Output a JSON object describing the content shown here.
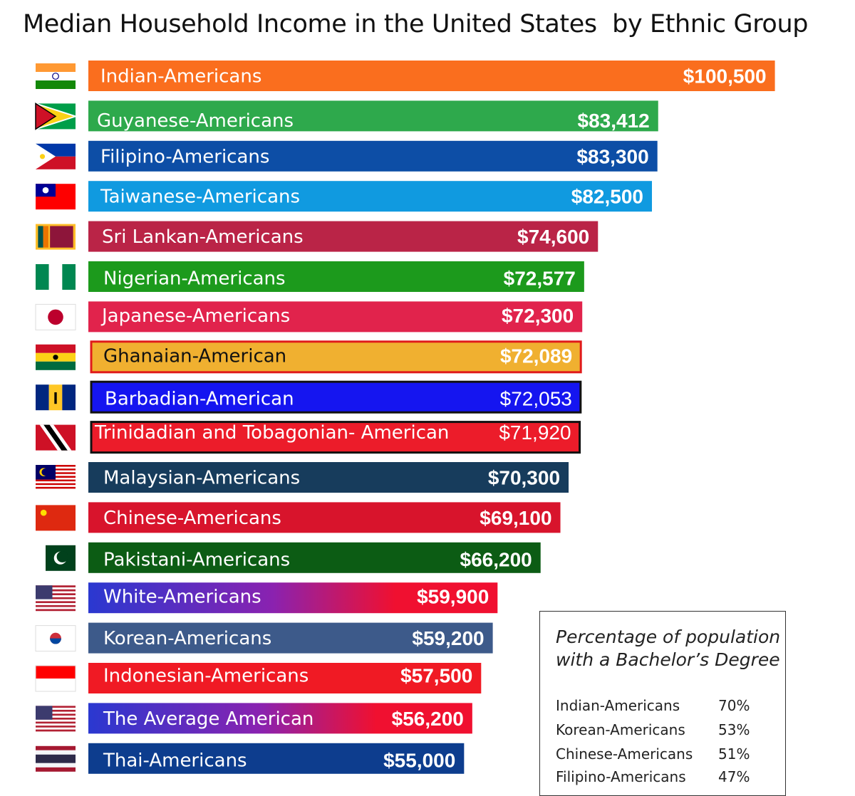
{
  "chart_data": {
    "type": "bar",
    "orientation": "horizontal",
    "title": "Median Household Income in the United States  by Ethnic Group",
    "bars": [
      {
        "label": "Indian-Americans",
        "value": 100500,
        "value_label": "$100,500",
        "color": "#fa6e1e",
        "flag": "india-flag-icon"
      },
      {
        "label": "Guyanese-Americans",
        "value": 83412,
        "value_label": "$83,412",
        "color": "#2ea94c",
        "flag": "guyana-flag-icon"
      },
      {
        "label": "Filipino-Americans",
        "value": 83300,
        "value_label": "$83,300",
        "color": "#0d4ea6",
        "flag": "philippines-flag-icon"
      },
      {
        "label": "Taiwanese-Americans",
        "value": 82500,
        "value_label": "$82,500",
        "color": "#109ae0",
        "flag": "taiwan-flag-icon"
      },
      {
        "label": "Sri Lankan-Americans",
        "value": 74600,
        "value_label": "$74,600",
        "color": "#ba2447",
        "flag": "sri-lanka-flag-icon"
      },
      {
        "label": "Nigerian-Americans",
        "value": 72577,
        "value_label": "$72,577",
        "color": "#1c9a1c",
        "flag": "nigeria-flag-icon"
      },
      {
        "label": "Japanese-Americans",
        "value": 72300,
        "value_label": "$72,300",
        "color": "#e1234c",
        "flag": "japan-flag-icon"
      },
      {
        "label": "Ghanaian-American",
        "value": 72089,
        "value_label": "$72,089",
        "color": "#f0b030",
        "flag": "ghana-flag-icon",
        "outlined": true,
        "label_dark": true
      },
      {
        "label": "Barbadian-American",
        "value": 72053,
        "value_label": "$72,053",
        "color": "#1515f0",
        "flag": "barbados-flag-icon",
        "outlined": true
      },
      {
        "label": "Trinidadian and Tobagonian- American",
        "value": 71920,
        "value_label": "$71,920",
        "color": "#ec1c2a",
        "flag": "trinidad-flag-icon",
        "outlined": true
      },
      {
        "label": "Malaysian-Americans",
        "value": 70300,
        "value_label": "$70,300",
        "color": "#173c5c",
        "flag": "malaysia-flag-icon"
      },
      {
        "label": "Chinese-Americans",
        "value": 69100,
        "value_label": "$69,100",
        "color": "#d8142c",
        "flag": "china-flag-icon"
      },
      {
        "label": "Pakistani-Americans",
        "value": 66200,
        "value_label": "$66,200",
        "color": "#0c5c14",
        "flag": "pakistan-flag-icon"
      },
      {
        "label": "White-Americans",
        "value": 59900,
        "value_label": "$59,900",
        "color": "#2a38d0",
        "color2": "#f01030",
        "flag": "usa-flag-icon"
      },
      {
        "label": "Korean-Americans",
        "value": 59200,
        "value_label": "$59,200",
        "color": "#3d5a8a",
        "flag": "south-korea-flag-icon"
      },
      {
        "label": "Indonesian-Americans",
        "value": 57500,
        "value_label": "$57,500",
        "color": "#f01a24",
        "flag": "indonesia-flag-icon"
      },
      {
        "label": "The Average American",
        "value": 56200,
        "value_label": "$56,200",
        "color": "#2a38d0",
        "color2": "#f01030",
        "flag": "usa-flag-icon"
      },
      {
        "label": "Thai-Americans",
        "value": 55000,
        "value_label": "$55,000",
        "color": "#0d3d8e",
        "flag": "thailand-flag-icon"
      }
    ],
    "education_inset": {
      "title": "Percentage of population with a Bachelor’s Degree",
      "rows": [
        {
          "label": "Indian-Americans",
          "value": "70%"
        },
        {
          "label": "Korean-Americans",
          "value": "53%"
        },
        {
          "label": "Chinese-Americans",
          "value": "51%"
        },
        {
          "label": "Filipino-Americans",
          "value": "47%"
        }
      ]
    }
  }
}
